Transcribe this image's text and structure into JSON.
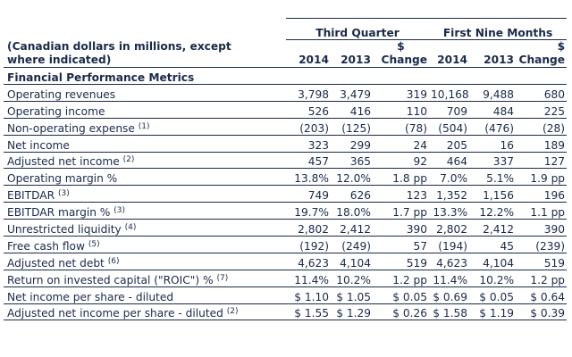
{
  "header": {
    "group_q": "Third Quarter",
    "group_nine": "First Nine Months",
    "caption_line1": "(Canadian dollars in millions, except",
    "caption_line2": "where indicated)",
    "col_2014": "2014",
    "col_2013": "2013",
    "col_change_top": "$",
    "col_change": "Change",
    "col_9_2014": "2014",
    "col_9_2013": "2013",
    "col_9_change_top": "$",
    "col_9_change": "Change"
  },
  "section_title": "Financial Performance Metrics",
  "rows": [
    {
      "label": "Operating revenues",
      "note": "",
      "q14": "3,798",
      "q13": "3,479",
      "qc": "319",
      "n14": "10,168",
      "n13": "9,488",
      "nc": "680"
    },
    {
      "label": "Operating income",
      "note": "",
      "q14": "526",
      "q13": "416",
      "qc": "110",
      "n14": "709",
      "n13": "484",
      "nc": "225"
    },
    {
      "label": "Non-operating expense",
      "note": "(1)",
      "q14": "(203)",
      "q13": "(125)",
      "qc": "(78)",
      "n14": "(504)",
      "n13": "(476)",
      "nc": "(28)"
    },
    {
      "label": "Net income",
      "note": "",
      "q14": "323",
      "q13": "299",
      "qc": "24",
      "n14": "205",
      "n13": "16",
      "nc": "189"
    },
    {
      "label": "Adjusted net income",
      "note": "(2)",
      "q14": "457",
      "q13": "365",
      "qc": "92",
      "n14": "464",
      "n13": "337",
      "nc": "127"
    },
    {
      "label": "Operating margin %",
      "note": "",
      "q14": "13.8%",
      "q13": "12.0%",
      "qc": "1.8 pp",
      "n14": "7.0%",
      "n13": "5.1%",
      "nc": "1.9 pp"
    },
    {
      "label": "EBITDAR",
      "note": "(3)",
      "q14": "749",
      "q13": "626",
      "qc": "123",
      "n14": "1,352",
      "n13": "1,156",
      "nc": "196"
    },
    {
      "label": "EBITDAR margin %",
      "note": "(3)",
      "q14": "19.7%",
      "q13": "18.0%",
      "qc": "1.7 pp",
      "n14": "13.3%",
      "n13": "12.2%",
      "nc": "1.1 pp"
    },
    {
      "label": "Unrestricted liquidity",
      "note": "(4)",
      "q14": "2,802",
      "q13": "2,412",
      "qc": "390",
      "n14": "2,802",
      "n13": "2,412",
      "nc": "390"
    },
    {
      "label": "Free cash flow",
      "note": "(5)",
      "q14": "(192)",
      "q13": "(249)",
      "qc": "57",
      "n14": "(194)",
      "n13": "45",
      "nc": "(239)"
    },
    {
      "label": "Adjusted net debt",
      "note": "(6)",
      "q14": "4,623",
      "q13": "4,104",
      "qc": "519",
      "n14": "4,623",
      "n13": "4,104",
      "nc": "519"
    },
    {
      "label": "Return on invested capital (\"ROIC\") %",
      "note": "(7)",
      "q14": "11.4%",
      "q13": "10.2%",
      "qc": "1.2 pp",
      "n14": "11.4%",
      "n13": "10.2%",
      "nc": "1.2 pp"
    },
    {
      "label": "Net income per share - diluted",
      "note": "",
      "q14": "$ 1.10",
      "q13": "$ 1.05",
      "qc": "$ 0.05",
      "n14": "$ 0.69",
      "n13": "$ 0.05",
      "nc": "$ 0.64"
    },
    {
      "label": "Adjusted net income per share - diluted",
      "note": "(2)",
      "q14": "$ 1.55",
      "q13": "$ 1.29",
      "qc": "$ 0.26",
      "n14": "$ 1.58",
      "n13": "$ 1.19",
      "nc": "$ 0.39"
    }
  ]
}
